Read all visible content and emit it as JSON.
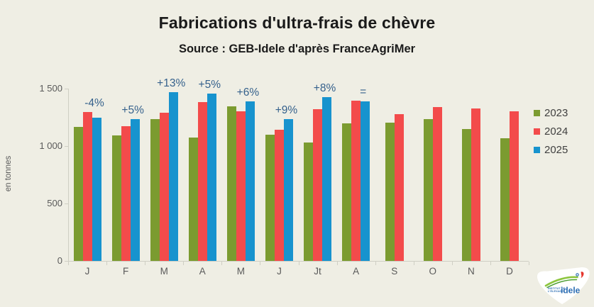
{
  "title": "Fabrications d'ultra-frais de chèvre",
  "subtitle": "Source : GEB-Idele d'après FranceAgriMer",
  "colors": {
    "background": "#efeee4",
    "title_text": "#1a1a1a",
    "axis_text": "#5a5a5a",
    "axis_line": "#cfcfc4",
    "annotation": "#35618c",
    "series_2023": "#7b9b30",
    "series_2024": "#f34b4b",
    "series_2025": "#1793ce",
    "logo_blue": "#2a6cb3",
    "logo_green_light": "#8dc63f",
    "logo_green_dark": "#4a9e2f",
    "logo_red": "#e5352c",
    "logo_white": "#ffffff"
  },
  "chart_data": {
    "type": "bar",
    "title": "Fabrications d'ultra-frais de chèvre",
    "subtitle": "Source : GEB-Idele d'après FranceAgriMer",
    "xlabel": "",
    "ylabel": "en tonnes",
    "ylim": [
      0,
      1500
    ],
    "grid": false,
    "legend_position": "right",
    "yticks": [
      {
        "value": 0,
        "label": "0"
      },
      {
        "value": 500,
        "label": "500"
      },
      {
        "value": 1000,
        "label": "1 000"
      },
      {
        "value": 1500,
        "label": "1 500"
      }
    ],
    "categories": [
      "J",
      "F",
      "M",
      "A",
      "M",
      "J",
      "Jt",
      "A",
      "S",
      "O",
      "N",
      "D"
    ],
    "series": [
      {
        "name": "2023",
        "color_key": "series_2023",
        "values": [
          1165,
          1090,
          1235,
          1075,
          1345,
          1100,
          1030,
          1200,
          1205,
          1235,
          1150,
          1065
        ]
      },
      {
        "name": "2024",
        "color_key": "series_2024",
        "values": [
          1295,
          1175,
          1290,
          1385,
          1305,
          1140,
          1320,
          1395,
          1280,
          1340,
          1325,
          1300
        ]
      },
      {
        "name": "2025",
        "color_key": "series_2025",
        "values": [
          1250,
          1232,
          1467,
          1455,
          1390,
          1235,
          1425,
          1390,
          null,
          null,
          null,
          null
        ]
      }
    ],
    "annotations": [
      "-4%",
      "+5%",
      "+13%",
      "+5%",
      "+6%",
      "+9%",
      "+8%",
      "=",
      "",
      "",
      "",
      ""
    ]
  },
  "legend": {
    "items": [
      {
        "label": "2023",
        "color_key": "series_2023"
      },
      {
        "label": "2024",
        "color_key": "series_2024"
      },
      {
        "label": "2025",
        "color_key": "series_2025"
      }
    ]
  },
  "logo": {
    "line1": "INSTITUT DE",
    "line2": "L'ÉLEVAGE",
    "brand": "idele"
  }
}
